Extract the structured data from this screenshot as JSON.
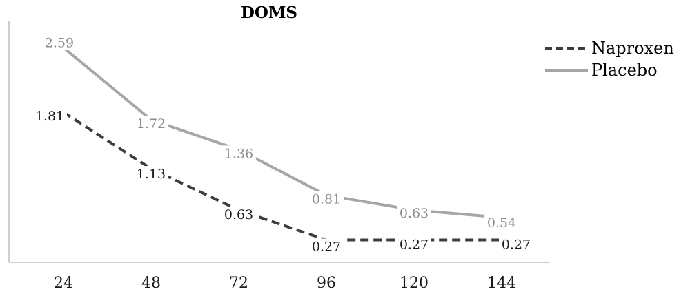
{
  "chart_data": {
    "type": "line",
    "title": "DOMS",
    "xlabel": "",
    "ylabel": "",
    "categories": [
      "24",
      "48",
      "72",
      "96",
      "120",
      "144"
    ],
    "ylim": [
      0,
      3
    ],
    "grid": false,
    "legend_position": "top-right",
    "series": [
      {
        "name": "Naproxen",
        "values": [
          1.81,
          1.13,
          0.63,
          0.27,
          0.27,
          0.27
        ],
        "labels": [
          "1.81",
          "1.13",
          "0.63",
          "0.27",
          "0.27",
          "0.27"
        ],
        "color": "#3d3d3d",
        "line_style": "dashed",
        "label_color": "#1a1a1a"
      },
      {
        "name": "Placebo",
        "values": [
          2.59,
          1.72,
          1.36,
          0.81,
          0.63,
          0.54
        ],
        "labels": [
          "2.59",
          "1.72",
          "1.36",
          "0.81",
          "0.63",
          "0.54"
        ],
        "color": "#a6a6a6",
        "line_style": "solid",
        "label_color": "#8c8c8c"
      }
    ],
    "axis_color": "#bfbfbf"
  }
}
